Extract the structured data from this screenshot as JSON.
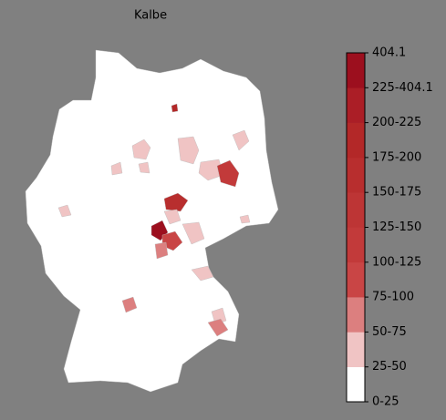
{
  "title": "Kalbe",
  "legend": {
    "labels": [
      "0-25",
      "25-50",
      "50-75",
      "75-100",
      "100-125",
      "125-150",
      "150-175",
      "175-200",
      "200-225",
      "225-404.1",
      "404.1"
    ],
    "colors": [
      "#ffffff",
      "#f0c4c4",
      "#dc7f7f",
      "#c94545",
      "#c23a3a",
      "#bd3535",
      "#b82e2e",
      "#b32828",
      "#ab1e26",
      "#9c0f1e"
    ]
  }
}
